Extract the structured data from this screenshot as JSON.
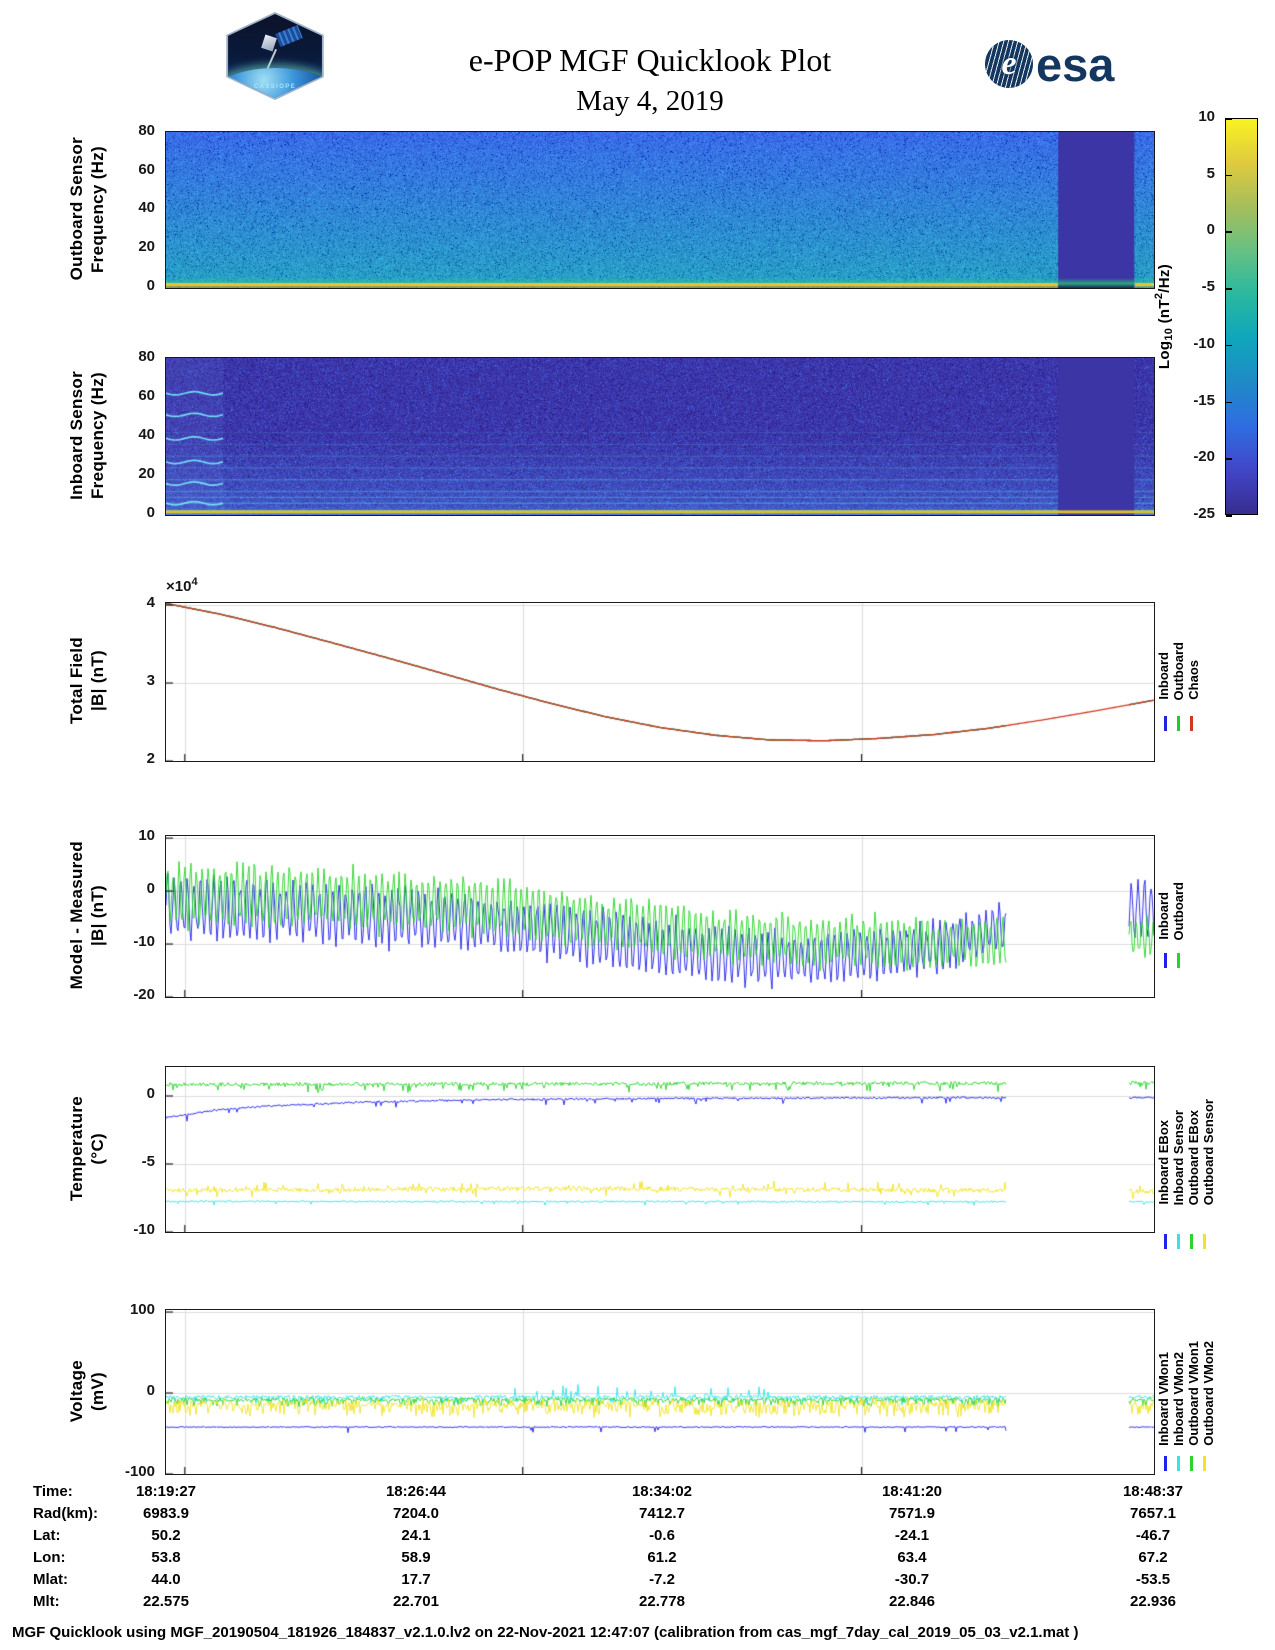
{
  "header": {
    "title": "e-POP MGF Quicklook Plot",
    "date": "May 4, 2019",
    "esa_text": "esa",
    "esa_globe_letter": "e",
    "patch_text": "CASSIOPE"
  },
  "colorbar": {
    "label_parts": {
      "prefix": "Log",
      "sub": "10",
      "mid": " (nT",
      "sup": "2",
      "suffix": "/Hz)"
    },
    "ticks": [
      10,
      5,
      0,
      -5,
      -10,
      -15,
      -20,
      -25
    ],
    "lim": [
      -25,
      10
    ],
    "gradient": [
      "#372d8f",
      "#4146c8",
      "#2f6de2",
      "#1f8ac6",
      "#0fa6bb",
      "#2ab8a0",
      "#66c183",
      "#a6be5b",
      "#dfca3e",
      "#f9f321"
    ]
  },
  "chart_data": [
    {
      "id": "outboard-spectrogram",
      "type": "heatmap",
      "ylabel": [
        "Outboard Sensor",
        "Frequency (Hz)"
      ],
      "yticks": [
        80,
        60,
        40,
        20,
        0
      ],
      "ylim": [
        0,
        80.5
      ],
      "xlim": [
        "18:19:27",
        "18:48:37"
      ],
      "zlabel": "Log10 (nT2/Hz)",
      "zlim": [
        -25,
        10
      ],
      "data_gap_x": [
        0.903,
        0.98
      ],
      "palette": {
        "top": "#3a6ce8",
        "bottom": "#2aa2c4",
        "band": "#3b35a6",
        "strip": "#2bbfa4",
        "zero_line": "#e7c52e"
      }
    },
    {
      "id": "inboard-spectrogram",
      "type": "heatmap",
      "ylabel": [
        "Inboard Sensor",
        "Frequency (Hz)"
      ],
      "yticks": [
        80,
        60,
        40,
        20,
        0
      ],
      "ylim": [
        0,
        80.5
      ],
      "xlim": [
        "18:19:27",
        "18:48:37"
      ],
      "zlabel": "Log10 (nT2/Hz)",
      "zlim": [
        -25,
        10
      ],
      "data_gap_x": [
        0.903,
        0.98
      ],
      "harmonics_hz": [
        42,
        36,
        30,
        24,
        18,
        12,
        9,
        6
      ],
      "left_segment_hz": [
        61,
        50,
        38,
        26,
        15,
        5
      ],
      "left_segment_end_x": 0.058,
      "palette": {
        "base": "#3c36aa",
        "line": "#5adcea",
        "band": "#3b35a6",
        "strip": "#4682e0",
        "zero_line": "#d9c22b"
      }
    },
    {
      "id": "total-field",
      "type": "line",
      "ylabel": [
        "Total Field",
        "|B| (nT)"
      ],
      "scale": {
        "prefix": "×10",
        "exp": "4"
      },
      "yticks": [
        4,
        3,
        2
      ],
      "ylim": [
        2,
        4.026
      ],
      "x": [
        0,
        0.056,
        0.111,
        0.167,
        0.222,
        0.278,
        0.333,
        0.389,
        0.444,
        0.5,
        0.556,
        0.611,
        0.667,
        0.722,
        0.778,
        0.833,
        0.889,
        0.944,
        1
      ],
      "values": [
        4.02,
        3.88,
        3.71,
        3.52,
        3.33,
        3.13,
        2.93,
        2.74,
        2.57,
        2.43,
        2.33,
        2.27,
        2.26,
        2.29,
        2.34,
        2.42,
        2.53,
        2.65,
        2.78
      ],
      "series": [
        {
          "name": "Inboard",
          "color": "#2323e6",
          "mode": "smooth",
          "segments": [
            [
              0,
              0.85
            ],
            [
              0.975,
              1
            ]
          ]
        },
        {
          "name": "Outboard",
          "color": "#23cc23",
          "mode": "smooth",
          "segments": [
            [
              0,
              0.85
            ],
            [
              0.975,
              1
            ]
          ]
        },
        {
          "name": "Chaos",
          "color": "#d03a20",
          "mode": "smooth",
          "segments": [
            [
              0,
              1
            ]
          ]
        }
      ]
    },
    {
      "id": "model-minus-measured",
      "type": "line",
      "ylabel": [
        "Model - Measured",
        "|B| (nT)"
      ],
      "yticks": [
        10,
        0,
        -10,
        -20
      ],
      "ylim": [
        -20,
        10.4
      ],
      "series": [
        {
          "name": "Inboard",
          "color": "#2020e8",
          "mode": "osc",
          "segments": [
            [
              0,
              0.85
            ],
            [
              0.975,
              1
            ]
          ],
          "period": 6.6,
          "centers": [
            [
              0,
              -3
            ],
            [
              0.15,
              -4
            ],
            [
              0.3,
              -5.5
            ],
            [
              0.45,
              -9
            ],
            [
              0.55,
              -12
            ],
            [
              0.65,
              -13
            ],
            [
              0.78,
              -10.5
            ],
            [
              0.85,
              -7
            ],
            [
              0.975,
              -3.5
            ],
            [
              1,
              -3.5
            ]
          ],
          "amps": [
            [
              0,
              5
            ],
            [
              0.3,
              4.6
            ],
            [
              0.55,
              4.6
            ],
            [
              0.85,
              3.6
            ],
            [
              1,
              4.5
            ]
          ]
        },
        {
          "name": "Outboard",
          "color": "#27d427",
          "mode": "osc",
          "segments": [
            [
              0,
              0.85
            ],
            [
              0.975,
              1
            ]
          ],
          "period": 5.8,
          "centers": [
            [
              0,
              -0.6
            ],
            [
              0.15,
              -1.2
            ],
            [
              0.3,
              -2.6
            ],
            [
              0.45,
              -6
            ],
            [
              0.55,
              -8.5
            ],
            [
              0.65,
              -9.5
            ],
            [
              0.78,
              -10
            ],
            [
              0.85,
              -9.5
            ],
            [
              0.975,
              -8.5
            ],
            [
              1,
              -8.5
            ]
          ],
          "amps": [
            [
              0,
              5.4
            ],
            [
              0.3,
              4.6
            ],
            [
              0.55,
              4
            ],
            [
              0.85,
              4
            ],
            [
              1,
              3.4
            ]
          ]
        }
      ]
    },
    {
      "id": "temperature",
      "type": "line",
      "ylabel": [
        "Temperature",
        "(°C)"
      ],
      "yticks": [
        0,
        -5,
        -10
      ],
      "ylim": [
        -10,
        2.13
      ],
      "series": [
        {
          "name": "Inboard EBox",
          "color": "#2222ee",
          "mode": "spiky",
          "segments": [
            [
              0,
              0.85
            ],
            [
              0.975,
              1
            ]
          ],
          "centers": [
            [
              0,
              -1.6
            ],
            [
              0.05,
              -1.05
            ],
            [
              0.1,
              -0.75
            ],
            [
              0.2,
              -0.45
            ],
            [
              0.3,
              -0.3
            ],
            [
              0.5,
              -0.18
            ],
            [
              0.85,
              -0.12
            ],
            [
              1,
              -0.12
            ]
          ],
          "jitter": 0.07,
          "spike": {
            "prob": 0.05,
            "amp": 0.5,
            "dir": -1
          }
        },
        {
          "name": "Inboard Sensor",
          "color": "#35e3e9",
          "mode": "spiky",
          "segments": [
            [
              0,
              0.85
            ],
            [
              0.975,
              1
            ]
          ],
          "centers": [
            [
              0,
              -7.75
            ],
            [
              1,
              -7.78
            ]
          ],
          "jitter": 0.06,
          "spike": {
            "prob": 0.04,
            "amp": 0.25,
            "dir": -1
          }
        },
        {
          "name": "Outboard EBox",
          "color": "#2cd42c",
          "mode": "spiky",
          "segments": [
            [
              0,
              0.85
            ],
            [
              0.975,
              1
            ]
          ],
          "centers": [
            [
              0,
              0.85
            ],
            [
              1,
              0.95
            ]
          ],
          "jitter": 0.13,
          "spike": {
            "prob": 0.09,
            "amp": 0.55,
            "dir": -1
          }
        },
        {
          "name": "Outboard Sensor",
          "color": "#f1e32a",
          "mode": "spiky",
          "segments": [
            [
              0,
              0.85
            ],
            [
              0.975,
              1
            ]
          ],
          "centers": [
            [
              0,
              -6.95
            ],
            [
              0.4,
              -6.8
            ],
            [
              1,
              -7.0
            ]
          ],
          "jitter": 0.17,
          "spike": {
            "prob": 0.12,
            "amp": 0.55,
            "dir": 0
          }
        }
      ]
    },
    {
      "id": "voltage",
      "type": "line",
      "ylabel": [
        "Voltage",
        "(mV)"
      ],
      "yticks": [
        100,
        0,
        -100
      ],
      "ylim": [
        -100,
        102.5
      ],
      "series": [
        {
          "name": "Inboard VMon1",
          "color": "#2222ee",
          "mode": "spiky",
          "segments": [
            [
              0,
              0.85
            ],
            [
              0.975,
              1
            ]
          ],
          "centers": [
            [
              0,
              -42
            ],
            [
              1,
              -42
            ]
          ],
          "jitter": 0.7,
          "spike": {
            "prob": 0.012,
            "amp": 7,
            "dir": -1
          }
        },
        {
          "name": "Inboard VMon2",
          "color": "#35e3e9",
          "mode": "spiky",
          "segments": [
            [
              0,
              0.85
            ],
            [
              0.975,
              1
            ]
          ],
          "centers": [
            [
              0,
              -5
            ],
            [
              1,
              -5
            ]
          ],
          "jitter": 2.2,
          "spike": {
            "prob": 0.22,
            "amp": 8,
            "dir": -1
          },
          "extra": {
            "x": [
              0.33,
              0.62
            ],
            "prob": 0.15,
            "amp": 14,
            "dir": 1
          }
        },
        {
          "name": "Outboard VMon1",
          "color": "#2cd42c",
          "mode": "spiky",
          "segments": [
            [
              0,
              0.85
            ],
            [
              0.975,
              1
            ]
          ],
          "centers": [
            [
              0,
              -8
            ],
            [
              1,
              -8
            ]
          ],
          "jitter": 2.2,
          "spike": {
            "prob": 0.3,
            "amp": 8,
            "dir": -1
          }
        },
        {
          "name": "Outboard VMon2",
          "color": "#f1e32a",
          "mode": "spiky",
          "segments": [
            [
              0,
              0.85
            ],
            [
              0.975,
              1
            ]
          ],
          "centers": [
            [
              0,
              -13
            ],
            [
              1,
              -13
            ]
          ],
          "jitter": 3.2,
          "spike": {
            "prob": 0.5,
            "amp": 15,
            "dir": -1
          },
          "extra": {
            "x": [
              0,
              1
            ],
            "prob": 0.25,
            "amp": 6,
            "dir": 1
          }
        }
      ]
    }
  ],
  "ephemeris": {
    "rows": [
      {
        "label": "Time:",
        "values": [
          "18:19:27",
          "18:26:44",
          "18:34:02",
          "18:41:20",
          "18:48:37"
        ]
      },
      {
        "label": "Rad(km):",
        "values": [
          "6983.9",
          "7204.0",
          "7412.7",
          "7571.9",
          "7657.1"
        ]
      },
      {
        "label": "Lat:",
        "values": [
          "50.2",
          "24.1",
          "-0.6",
          "-24.1",
          "-46.7"
        ]
      },
      {
        "label": "Lon:",
        "values": [
          "53.8",
          "58.9",
          "61.2",
          "63.4",
          "67.2"
        ]
      },
      {
        "label": "Mlat:",
        "values": [
          "44.0",
          "17.7",
          "-7.2",
          "-30.7",
          "-53.5"
        ]
      },
      {
        "label": "Mlt:",
        "values": [
          "22.575",
          "22.701",
          "22.778",
          "22.846",
          "22.936"
        ]
      }
    ]
  },
  "footer": {
    "text": "MGF Quicklook using MGF_20190504_181926_184837_v2.1.0.lv2 on 22-Nov-2021 12:47:07 (calibration from cas_mgf_7day_cal_2019_05_03_v2.1.mat )"
  }
}
